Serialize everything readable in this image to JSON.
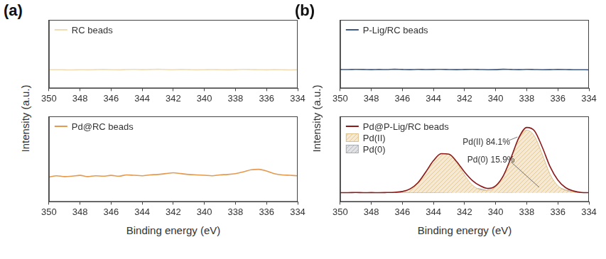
{
  "chart_data": [
    {
      "type": "line",
      "panel_label": "(a)",
      "ylabel": "Intensity (a.u.)",
      "x": [
        350,
        349.5,
        349,
        348.5,
        348,
        347.5,
        347,
        346.5,
        346,
        345.5,
        345,
        344.5,
        344,
        343.5,
        343,
        342.5,
        342,
        341.5,
        341,
        340.5,
        340,
        339.5,
        339,
        338.5,
        338,
        337.5,
        337,
        336.5,
        336,
        335.5,
        335,
        334.5,
        334
      ],
      "series": [
        {
          "name": "RC beads",
          "color": "#f0dcb4",
          "marker": "none",
          "line_style": "solid",
          "values": [
            27,
            27.2,
            27,
            26.8,
            27.1,
            27,
            27.3,
            27.5,
            27.2,
            27,
            27.4,
            27.6,
            27.3,
            27.5,
            27.8,
            27.4,
            27.2,
            27.5,
            27.3,
            27,
            27.2,
            27.4,
            27.1,
            27,
            27.3,
            27.6,
            27.4,
            27.2,
            27,
            27.3,
            27.1,
            26.9,
            27
          ]
        }
      ],
      "xlim": [
        350,
        334
      ],
      "xticks": [
        350,
        348,
        346,
        344,
        342,
        340,
        338,
        336,
        334
      ],
      "ylim": [
        0,
        100
      ],
      "yticks": [],
      "tick_labels": "x",
      "grid": false,
      "legend": "upper left"
    },
    {
      "type": "line",
      "xlabel": "Binding energy (eV)",
      "x": [
        350,
        349.5,
        349,
        348.5,
        348,
        347.5,
        347,
        346.5,
        346,
        345.5,
        345,
        344.5,
        344,
        343.5,
        343,
        342.5,
        342,
        341.5,
        341,
        340.5,
        340,
        339.5,
        339,
        338.5,
        338,
        337.5,
        337,
        336.5,
        336,
        335.5,
        335,
        334.5,
        334
      ],
      "series": [
        {
          "name": "Pd@RC beads",
          "color": "#e49a4e",
          "marker": "none",
          "line_style": "solid",
          "values": [
            29,
            30.5,
            29.5,
            30,
            31,
            29.5,
            30.5,
            30,
            31,
            30,
            31.5,
            31,
            30.5,
            31.5,
            32,
            33,
            34,
            33,
            32,
            31.5,
            31,
            30.5,
            31.5,
            32,
            33,
            35,
            37.5,
            38,
            36,
            33,
            31.5,
            31,
            30.5
          ]
        }
      ],
      "xlim": [
        350,
        334
      ],
      "xticks": [
        350,
        348,
        346,
        344,
        342,
        340,
        338,
        336,
        334
      ],
      "ylim": [
        0,
        100
      ],
      "yticks": [],
      "tick_labels": "x",
      "grid": false,
      "legend": "upper left"
    },
    {
      "type": "line",
      "panel_label": "(b)",
      "ylabel": "Intensity (a.u.)",
      "x": [
        350,
        349.5,
        349,
        348.5,
        348,
        347.5,
        347,
        346.5,
        346,
        345.5,
        345,
        344.5,
        344,
        343.5,
        343,
        342.5,
        342,
        341.5,
        341,
        340.5,
        340,
        339.5,
        339,
        338.5,
        338,
        337.5,
        337,
        336.5,
        336,
        335.5,
        335,
        334.5,
        334
      ],
      "series": [
        {
          "name": "P-Lig/RC beads",
          "color": "#3d5a8a",
          "marker": "none",
          "line_style": "solid",
          "values": [
            27.5,
            27.4,
            27.6,
            27.5,
            27.3,
            27.5,
            27.4,
            27.8,
            27.5,
            27.3,
            27.6,
            27.4,
            27.5,
            27.7,
            27.4,
            27.3,
            27.5,
            27.6,
            27.4,
            27.2,
            27.3,
            27.8,
            27.5,
            27.3,
            27.6,
            27.4,
            27.2,
            27.3,
            27.5,
            27.4,
            27.2,
            27.1,
            27
          ]
        }
      ],
      "xlim": [
        350,
        334
      ],
      "xticks": [
        350,
        348,
        346,
        344,
        342,
        340,
        338,
        336,
        334
      ],
      "ylim": [
        0,
        100
      ],
      "yticks": [],
      "tick_labels": "x",
      "grid": false,
      "legend": "upper left"
    },
    {
      "type": "line",
      "xlabel": "Binding energy (eV)",
      "x": [
        350,
        349.5,
        349,
        348.5,
        348,
        347.5,
        347,
        346.5,
        346,
        345.5,
        345,
        344.5,
        344,
        343.5,
        343,
        342.5,
        342,
        341.5,
        341,
        340.5,
        340,
        339.5,
        339,
        338.5,
        338,
        337.5,
        337,
        336.5,
        336,
        335.5,
        335,
        334.5,
        334
      ],
      "series": [
        {
          "name": "Pd@P-Lig/RC beads",
          "type": "line",
          "color": "#8b1a1a",
          "marker": "none",
          "line_style": "solid",
          "values": [
            0,
            0,
            0.2,
            0,
            0.1,
            0,
            0.2,
            0.5,
            1.5,
            5,
            13,
            27,
            42,
            51.2,
            50.5,
            40.5,
            27,
            16,
            9,
            5.5,
            9,
            22.5,
            46.5,
            72.5,
            85.5,
            81,
            59.5,
            34,
            16.5,
            6.5,
            2.2,
            0.3,
            0
          ]
        },
        {
          "name": "Pd(II)",
          "type": "area",
          "color": "#dcc08a",
          "marker": "none",
          "line_style": "solid",
          "values": [
            0,
            0,
            0,
            0,
            0,
            0,
            0,
            0.5,
            1.5,
            5,
            13,
            27,
            42,
            51,
            50,
            39,
            23,
            10,
            4,
            3,
            8,
            22,
            46,
            71,
            82,
            74,
            50,
            24,
            9,
            3,
            1,
            0,
            0
          ]
        },
        {
          "name": "Pd(0)",
          "type": "area",
          "color": "#a9acb3",
          "marker": "none",
          "line_style": "solid",
          "values": [
            0,
            0,
            0,
            0,
            0,
            0,
            0,
            0,
            0,
            0,
            0,
            0,
            0,
            0.2,
            0.5,
            1.5,
            4,
            6,
            5,
            2.5,
            1,
            0.5,
            0.5,
            1.5,
            3.5,
            7,
            9.5,
            10,
            7.5,
            3.5,
            1.2,
            0.3,
            0
          ]
        }
      ],
      "annotations": [
        {
          "text": "Pd(II) 84.1%"
        },
        {
          "text": "Pd(0) 15.9%"
        }
      ],
      "xlim": [
        350,
        334
      ],
      "xticks": [
        350,
        348,
        346,
        344,
        342,
        340,
        338,
        336,
        334
      ],
      "ylim": [
        -12,
        100
      ],
      "yticks": [],
      "tick_labels": "x",
      "grid": false,
      "legend": "upper left"
    }
  ]
}
